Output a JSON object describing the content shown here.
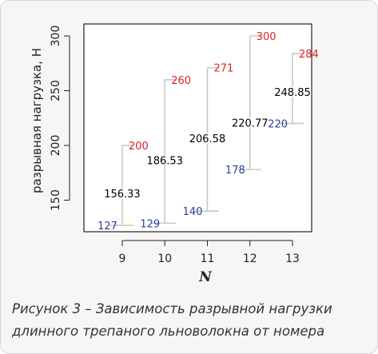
{
  "caption": {
    "line1": "Рисунок 3 – Зависимость разрывной нагрузки",
    "line2": "длинного трепаного льноволокна от номера"
  },
  "colors": {
    "max": "#e02020",
    "min": "#2c3f9e",
    "mean": "#000000",
    "whisker": "#c8c8c8"
  },
  "chart_data": {
    "type": "range",
    "title": "",
    "xlabel": "N",
    "ylabel": "разрывная нагрузка, Н",
    "categories": [
      "9",
      "10",
      "11",
      "12",
      "13"
    ],
    "x": [
      9,
      10,
      11,
      12,
      13
    ],
    "xlim": [
      8.1,
      13.45
    ],
    "ylim": [
      127,
      300
    ],
    "yticks": [
      150,
      200,
      250,
      300
    ],
    "grid": false,
    "series": [
      {
        "role": "max",
        "values": [
          200,
          260,
          271,
          300,
          284
        ],
        "labels": [
          "200",
          "260",
          "271",
          "300",
          "284"
        ]
      },
      {
        "role": "mean",
        "values": [
          156.33,
          186.53,
          206.58,
          220.77,
          248.85
        ],
        "labels": [
          "156.33",
          "186.53",
          "206.58",
          "220.77",
          "248.85"
        ]
      },
      {
        "role": "min",
        "values": [
          127,
          129,
          140,
          178,
          220
        ],
        "labels": [
          "127",
          "129",
          "140",
          "178",
          "220"
        ]
      }
    ]
  }
}
